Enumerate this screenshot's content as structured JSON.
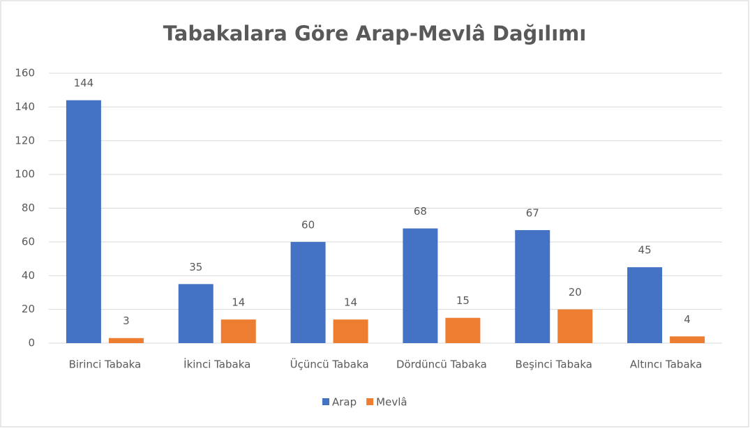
{
  "chart_data": {
    "type": "bar",
    "title": "Tabakalara Göre Arap-Mevlâ Dağılımı",
    "categories": [
      "Birinci Tabaka",
      "İkinci Tabaka",
      "Üçüncü Tabaka",
      "Dördüncü Tabaka",
      "Beşinci Tabaka",
      "Altıncı Tabaka"
    ],
    "series": [
      {
        "name": "Arap",
        "color": "#4472c4",
        "values": [
          144,
          35,
          60,
          68,
          67,
          45
        ]
      },
      {
        "name": "Mevlâ",
        "color": "#ed7d31",
        "values": [
          3,
          14,
          14,
          15,
          20,
          4
        ]
      }
    ],
    "ylim": [
      0,
      160
    ],
    "yticks": [
      0,
      20,
      40,
      60,
      80,
      100,
      120,
      140,
      160
    ],
    "grid": true,
    "legend": "bottom"
  }
}
